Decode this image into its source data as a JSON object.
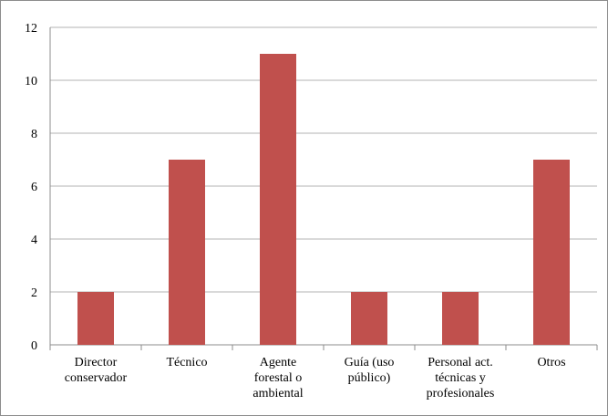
{
  "chart_data": {
    "type": "bar",
    "categories": [
      "Director\nconservador",
      "Técnico",
      "Agente\nforestal o\nambiental",
      "Guía (uso\npúblico)",
      "Personal  act.\ntécnicas y\nprofesionales",
      "Otros"
    ],
    "values": [
      2,
      7,
      11,
      2,
      2,
      7
    ],
    "color": "#c0504d",
    "ylim": [
      0,
      12
    ],
    "yticks": [
      0,
      2,
      4,
      6,
      8,
      10,
      12
    ],
    "grid": true
  }
}
